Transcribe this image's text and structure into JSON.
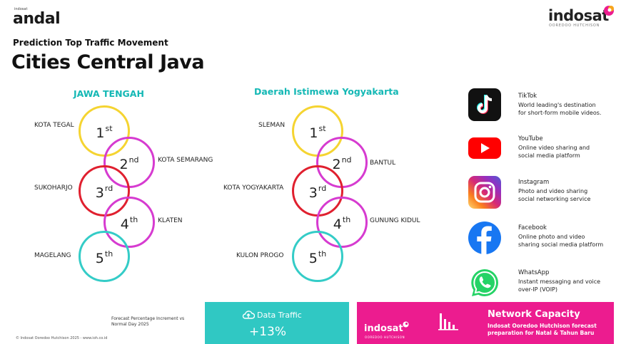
{
  "header": {
    "andal_small": "indosat",
    "andal_logo": "andal",
    "brand_logo": "indosat",
    "brand_sub": "OOREDOO HUTCHISON",
    "subtitle": "Prediction Top Traffic Movement",
    "title": "Cities Central Java"
  },
  "regions": [
    {
      "name": "JAWA TENGAH",
      "ranks": [
        {
          "rank": "1",
          "suffix": "st",
          "city": "KOTA TEGAL",
          "color": "#f5d431"
        },
        {
          "rank": "2",
          "suffix": "nd",
          "city": "KOTA SEMARANG",
          "color": "#d63bd0"
        },
        {
          "rank": "3",
          "suffix": "rd",
          "city": "SUKOHARJO",
          "color": "#e0202f"
        },
        {
          "rank": "4",
          "suffix": "th",
          "city": "KLATEN",
          "color": "#d63bd0"
        },
        {
          "rank": "5",
          "suffix": "th",
          "city": "MAGELANG",
          "color": "#34ccc7"
        }
      ]
    },
    {
      "name": "Daerah Istimewa Yogyakarta",
      "ranks": [
        {
          "rank": "1",
          "suffix": "st",
          "city": "SLEMAN",
          "color": "#f5d431"
        },
        {
          "rank": "2",
          "suffix": "nd",
          "city": "BANTUL",
          "color": "#d63bd0"
        },
        {
          "rank": "3",
          "suffix": "rd",
          "city": "KOTA YOGYAKARTA",
          "color": "#e0202f"
        },
        {
          "rank": "4",
          "suffix": "th",
          "city": "GUNUNG KIDUL",
          "color": "#d63bd0"
        },
        {
          "rank": "5",
          "suffix": "th",
          "city": "KULON PROGO",
          "color": "#34ccc7"
        }
      ]
    }
  ],
  "apps": [
    {
      "name": "TikTok",
      "desc1": "World leading's destination",
      "desc2": "for short-form mobile videos.",
      "icon": "tiktok-icon",
      "color": "#111111"
    },
    {
      "name": "YouTube",
      "desc1": "Online video sharing and",
      "desc2": "social media platform",
      "icon": "youtube-icon",
      "color": "#ff0000"
    },
    {
      "name": "Instagram",
      "desc1": "Photo and video sharing",
      "desc2": "social networking service",
      "icon": "instagram-icon",
      "color": "#d62976"
    },
    {
      "name": "Facebook",
      "desc1": "Online photo and video",
      "desc2": "sharing social media platform",
      "icon": "facebook-icon",
      "color": "#1877f2"
    },
    {
      "name": "WhatsApp",
      "desc1": "Instant messaging and voice",
      "desc2": "over-IP (VOIP)",
      "icon": "whatsapp-icon",
      "color": "#25d366"
    }
  ],
  "footer": {
    "footnote": "Forecast Percentage Increment vs Normal Day 2025",
    "copyright": "© Indosat Ooredoo Hutchison 2025 - www.ioh.co.id",
    "traffic_label": "Data Traffic",
    "traffic_value": "+13%",
    "capacity_brand": "indosat",
    "capacity_brand_sub": "OOREDOO HUTCHISON",
    "capacity_title": "Network Capacity",
    "capacity_desc": "Indosat Ooredoo Hutchison forecast preparation for Natal & Tahun Baru",
    "traffic_color": "#30c8c3",
    "capacity_color": "#ec1c8f"
  }
}
